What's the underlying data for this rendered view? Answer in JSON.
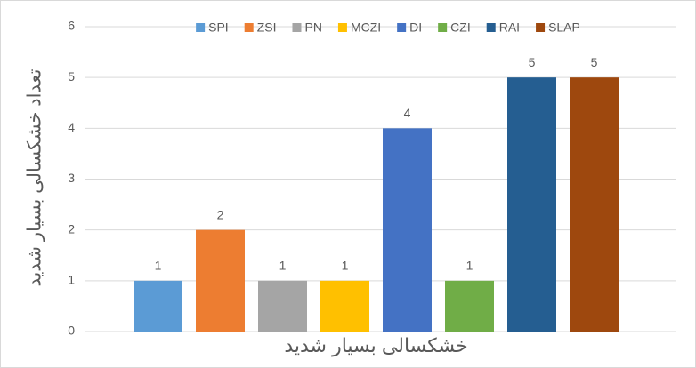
{
  "chart_data": {
    "type": "bar",
    "y_label": "تعداد خشکسالی بسیار شدید",
    "categories": [
      "خشکسالی بسیار شدید"
    ],
    "series": [
      {
        "name": "SPI",
        "color": "#5b9bd5",
        "values": [
          1
        ]
      },
      {
        "name": "ZSI",
        "color": "#ed7d31",
        "values": [
          2
        ]
      },
      {
        "name": "PN",
        "color": "#a5a5a5",
        "values": [
          1
        ]
      },
      {
        "name": "MCZI",
        "color": "#ffc000",
        "values": [
          1
        ]
      },
      {
        "name": "DI",
        "color": "#4472c4",
        "values": [
          4
        ]
      },
      {
        "name": "CZI",
        "color": "#70ad47",
        "values": [
          1
        ]
      },
      {
        "name": "RAI",
        "color": "#255e91",
        "values": [
          5
        ]
      },
      {
        "name": "SLAP",
        "color": "#9e480e",
        "values": [
          5
        ]
      }
    ],
    "ylim": [
      0,
      6
    ],
    "yticks": [
      0,
      1,
      2,
      3,
      4,
      5,
      6
    ],
    "grid": true,
    "legend": "top"
  }
}
